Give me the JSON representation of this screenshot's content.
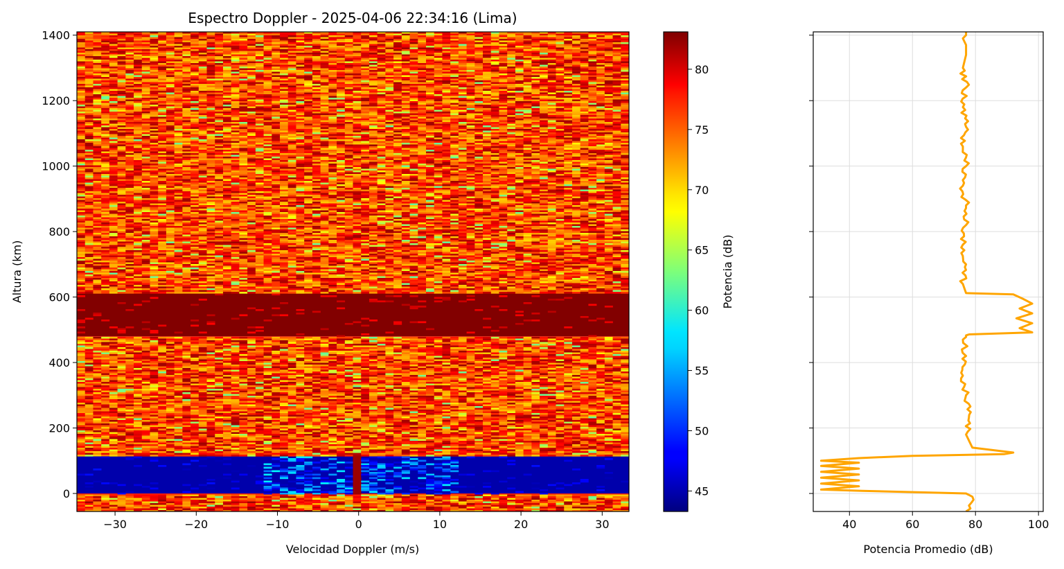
{
  "chart_data": [
    {
      "type": "heatmap",
      "title": "Espectro Doppler - 2025-04-06 22:34:16 (Lima)",
      "xlabel": "Velocidad Doppler (m/s)",
      "ylabel": "Altura (km)",
      "xlim": [
        -34.7,
        33.3
      ],
      "ylim": [
        -55,
        1410
      ],
      "xticks": [
        -30,
        -20,
        -10,
        0,
        10,
        20,
        30
      ],
      "xtick_labels": [
        "−30",
        "−20",
        "−10",
        "0",
        "10",
        "20",
        "30"
      ],
      "yticks": [
        0,
        200,
        400,
        600,
        800,
        1000,
        1200,
        1400
      ],
      "ytick_labels": [
        "0",
        "200",
        "400",
        "600",
        "800",
        "1000",
        "1200",
        "1400"
      ],
      "colormap": "jet",
      "grid": false,
      "regions": [
        {
          "alt_range": [
            -55,
            0
          ],
          "power_db": 77,
          "description_level": "noise"
        },
        {
          "alt_range": [
            0,
            118
          ],
          "power_db": 45,
          "description_level": "low"
        },
        {
          "alt_range": [
            118,
            480
          ],
          "power_db": 77,
          "description_level": "noise"
        },
        {
          "alt_range": [
            480,
            612
          ],
          "power_db": 83,
          "description_level": "high"
        },
        {
          "alt_range": [
            612,
            1410
          ],
          "power_db": 77,
          "description_level": "noise"
        }
      ],
      "colorbar": {
        "label": "Potencia (dB)",
        "range": [
          43.3,
          83.1
        ],
        "ticks": [
          45,
          50,
          55,
          60,
          65,
          70,
          75,
          80
        ],
        "tick_labels": [
          "45",
          "50",
          "55",
          "60",
          "65",
          "70",
          "75",
          "80"
        ]
      }
    },
    {
      "type": "line",
      "title": "",
      "xlabel": "Potencia Promedio (dB)",
      "ylabel": "",
      "xlim": [
        28.5,
        101.5
      ],
      "ylim": [
        -55,
        1410
      ],
      "xticks": [
        40,
        60,
        80,
        100
      ],
      "xtick_labels": [
        "40",
        "60",
        "80",
        "100"
      ],
      "yticks": [
        0,
        200,
        400,
        600,
        800,
        1000,
        1200,
        1400
      ],
      "grid": true,
      "line_color": "#ffa500",
      "series": [
        {
          "x": [
            77,
            79,
            77,
            44,
            31,
            43,
            31,
            43,
            31,
            43,
            31,
            43,
            31,
            43,
            31,
            43,
            60,
            89,
            92,
            79,
            77,
            78,
            77,
            76,
            77,
            76,
            77,
            77,
            78,
            98,
            94,
            98,
            93,
            98,
            94,
            98,
            95,
            92,
            77,
            76,
            77,
            76,
            77,
            77,
            76,
            77,
            76,
            77,
            76,
            77,
            76,
            77,
            77,
            76,
            77,
            77
          ],
          "y": [
            -55,
            -10,
            0,
            8,
            12,
            22,
            30,
            40,
            48,
            58,
            66,
            76,
            84,
            94,
            100,
            108,
            115,
            120,
            125,
            140,
            180,
            240,
            300,
            360,
            420,
            470,
            478,
            483,
            486,
            492,
            505,
            520,
            535,
            550,
            565,
            580,
            595,
            608,
            612,
            640,
            700,
            760,
            820,
            880,
            940,
            1000,
            1060,
            1120,
            1180,
            1240,
            1300,
            1340,
            1370,
            1390,
            1400,
            1410
          ]
        }
      ]
    }
  ]
}
